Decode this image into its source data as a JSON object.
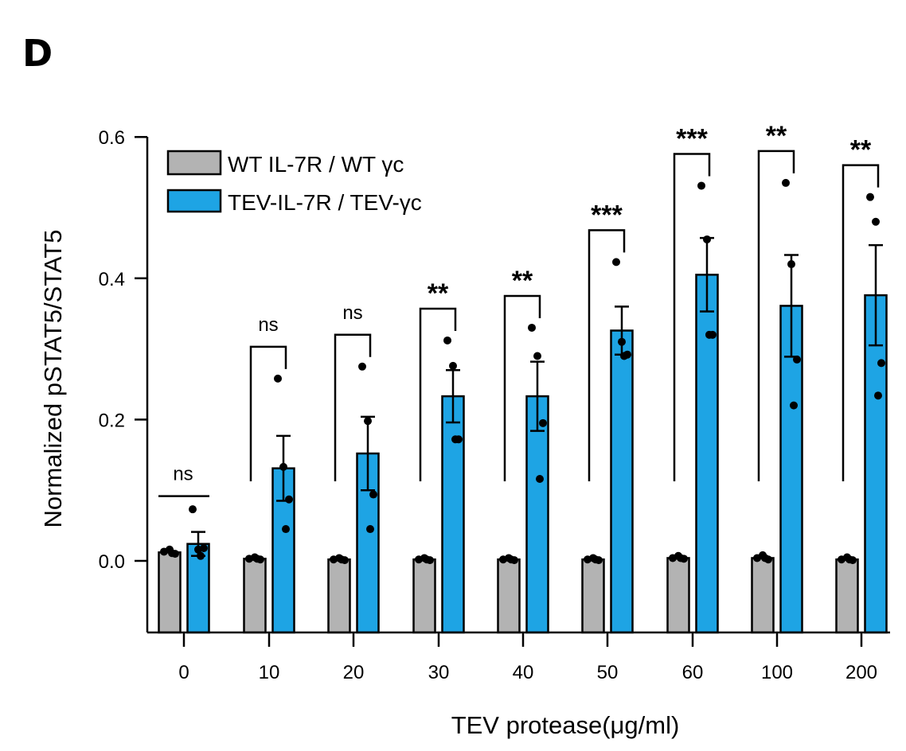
{
  "panel_label": "D",
  "chart_data": {
    "type": "bar",
    "xlabel": "TEV protease(μg/ml)",
    "ylabel": "Normalized pSTAT5/STAT5",
    "ylim": [
      -0.1,
      0.6
    ],
    "yticks": [
      "0.0",
      "0.2",
      "0.4",
      "0.6"
    ],
    "categories": [
      "0",
      "10",
      "20",
      "30",
      "40",
      "50",
      "60",
      "100",
      "200"
    ],
    "series": [
      {
        "name": "WT IL-7R / WT γc",
        "color": "#b3b3b3",
        "values": [
          0.012,
          0.003,
          0.002,
          0.002,
          0.002,
          0.002,
          0.004,
          0.004,
          0.002
        ],
        "sem": [
          0,
          0,
          0,
          0,
          0,
          0,
          0,
          0,
          0
        ],
        "points": [
          [
            0.013,
            0.016,
            0.01,
            0.011
          ],
          [
            0.003,
            0.005,
            0.002,
            0.003
          ],
          [
            0.002,
            0.004,
            0.001,
            0.002
          ],
          [
            0.002,
            0.004,
            0.001,
            0.002
          ],
          [
            0.002,
            0.004,
            0.001,
            0.002
          ],
          [
            0.002,
            0.004,
            0.001,
            0.002
          ],
          [
            0.004,
            0.007,
            0.003,
            0.004
          ],
          [
            0.004,
            0.008,
            0.002,
            0.004
          ],
          [
            0.002,
            0.005,
            0.001,
            0.002
          ]
        ]
      },
      {
        "name": "TEV-IL-7R / TEV-γc",
        "color": "#1ea4e4",
        "values": [
          0.024,
          0.131,
          0.152,
          0.233,
          0.233,
          0.326,
          0.405,
          0.361,
          0.376
        ],
        "sem": [
          0.017,
          0.046,
          0.052,
          0.037,
          0.049,
          0.034,
          0.052,
          0.072,
          0.071
        ],
        "points": [
          [
            0.073,
            0.016,
            0.018,
            0.007
          ],
          [
            0.258,
            0.133,
            0.087,
            0.045
          ],
          [
            0.275,
            0.198,
            0.094,
            0.045
          ],
          [
            0.312,
            0.276,
            0.172,
            0.172
          ],
          [
            0.33,
            0.29,
            0.195,
            0.116
          ],
          [
            0.423,
            0.31,
            0.292,
            0.29
          ],
          [
            0.531,
            0.455,
            0.32,
            0.32
          ],
          [
            0.535,
            0.42,
            0.285,
            0.22
          ],
          [
            0.515,
            0.48,
            0.28,
            0.234
          ]
        ]
      }
    ],
    "significance": [
      "ns",
      "ns",
      "ns",
      "**",
      "**",
      "***",
      "***",
      "**",
      "**"
    ],
    "legend_position": "top-left",
    "grid": false
  }
}
